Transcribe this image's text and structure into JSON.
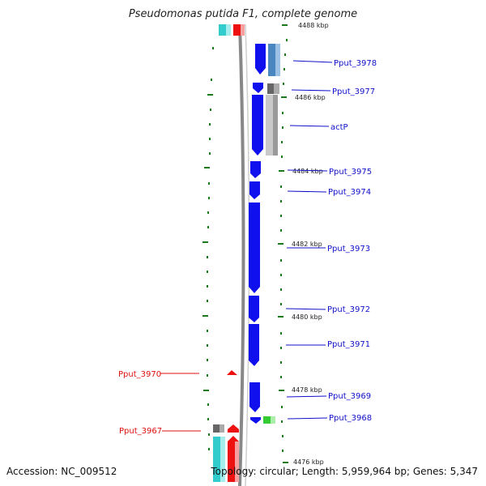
{
  "title": "Pseudomonas putida F1, complete genome",
  "accession_label": "Accession: NC_009512",
  "topology_label": "Topology: circular; Length: 5,959,964 bp; Genes: 5,347",
  "colors": {
    "forward_gene": "#1010ee",
    "reverse_gene": "#ee1111",
    "backbone": "#888888",
    "tick": "#1a7a1a",
    "label_forward": "#1010cc",
    "label_reverse": "#dd1111"
  },
  "ruler_labels": [
    "4488 kbp",
    "4486 kbp",
    "4484 kbp",
    "4482 kbp",
    "4480 kbp",
    "4478 kbp",
    "4476 kbp"
  ],
  "forward_labels": [
    "Pput_3978",
    "Pput_3977",
    "actP",
    "Pput_3975",
    "Pput_3974",
    "Pput_3973",
    "Pput_3972",
    "Pput_3971",
    "Pput_3969",
    "Pput_3968"
  ],
  "reverse_labels": [
    "Pput_3970",
    "Pput_3967"
  ]
}
